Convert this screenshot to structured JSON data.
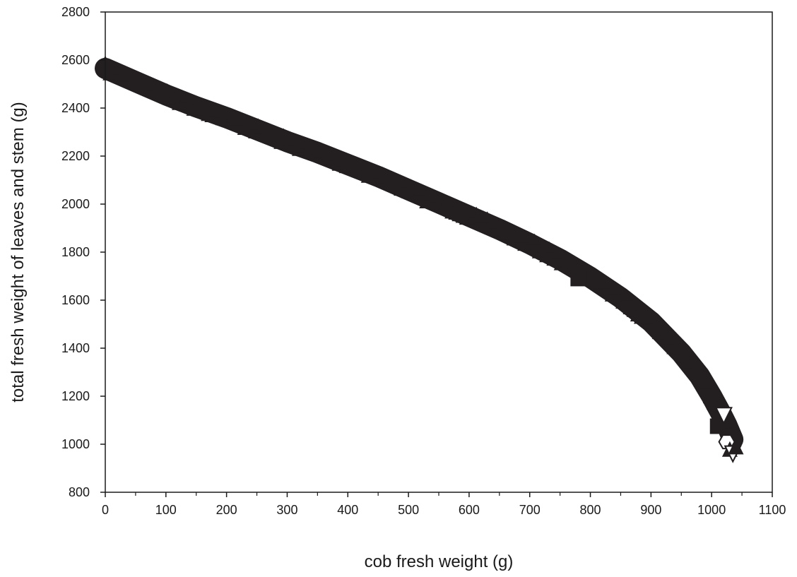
{
  "chart_data": {
    "type": "scatter",
    "title": "",
    "xlabel": "cob fresh weight (g)",
    "ylabel": "total fresh weight of leaves and stem (g)",
    "xlim": [
      0,
      1100
    ],
    "ylim": [
      800,
      2800
    ],
    "xticks": [
      0,
      100,
      200,
      300,
      400,
      500,
      600,
      700,
      800,
      900,
      1000,
      1100
    ],
    "yticks": [
      800,
      1000,
      1200,
      1400,
      1600,
      1800,
      2000,
      2200,
      2400,
      2600,
      2800
    ],
    "grid": false,
    "legend": "none",
    "marker_color": "#231f20",
    "band_trend": {
      "x": [
        0,
        50,
        100,
        150,
        200,
        250,
        300,
        350,
        400,
        450,
        500,
        550,
        600,
        650,
        700,
        750,
        800,
        850,
        900,
        950,
        980,
        1000,
        1015,
        1025,
        1035
      ],
      "y": [
        2565,
        2510,
        2455,
        2405,
        2360,
        2310,
        2260,
        2215,
        2165,
        2115,
        2060,
        2005,
        1950,
        1895,
        1835,
        1770,
        1695,
        1610,
        1510,
        1380,
        1285,
        1200,
        1130,
        1080,
        1020
      ]
    },
    "outlier_points": [
      {
        "x": 1010,
        "y": 1075,
        "marker": "square"
      },
      {
        "x": 1020,
        "y": 1120,
        "marker": "triangle-down-open"
      },
      {
        "x": 1025,
        "y": 1010,
        "marker": "hexagon-open"
      },
      {
        "x": 1030,
        "y": 980,
        "marker": "triangle"
      },
      {
        "x": 1035,
        "y": 960,
        "marker": "triangle-down-open"
      },
      {
        "x": 1040,
        "y": 990,
        "marker": "triangle"
      },
      {
        "x": 780,
        "y": 1690,
        "marker": "square"
      }
    ]
  }
}
